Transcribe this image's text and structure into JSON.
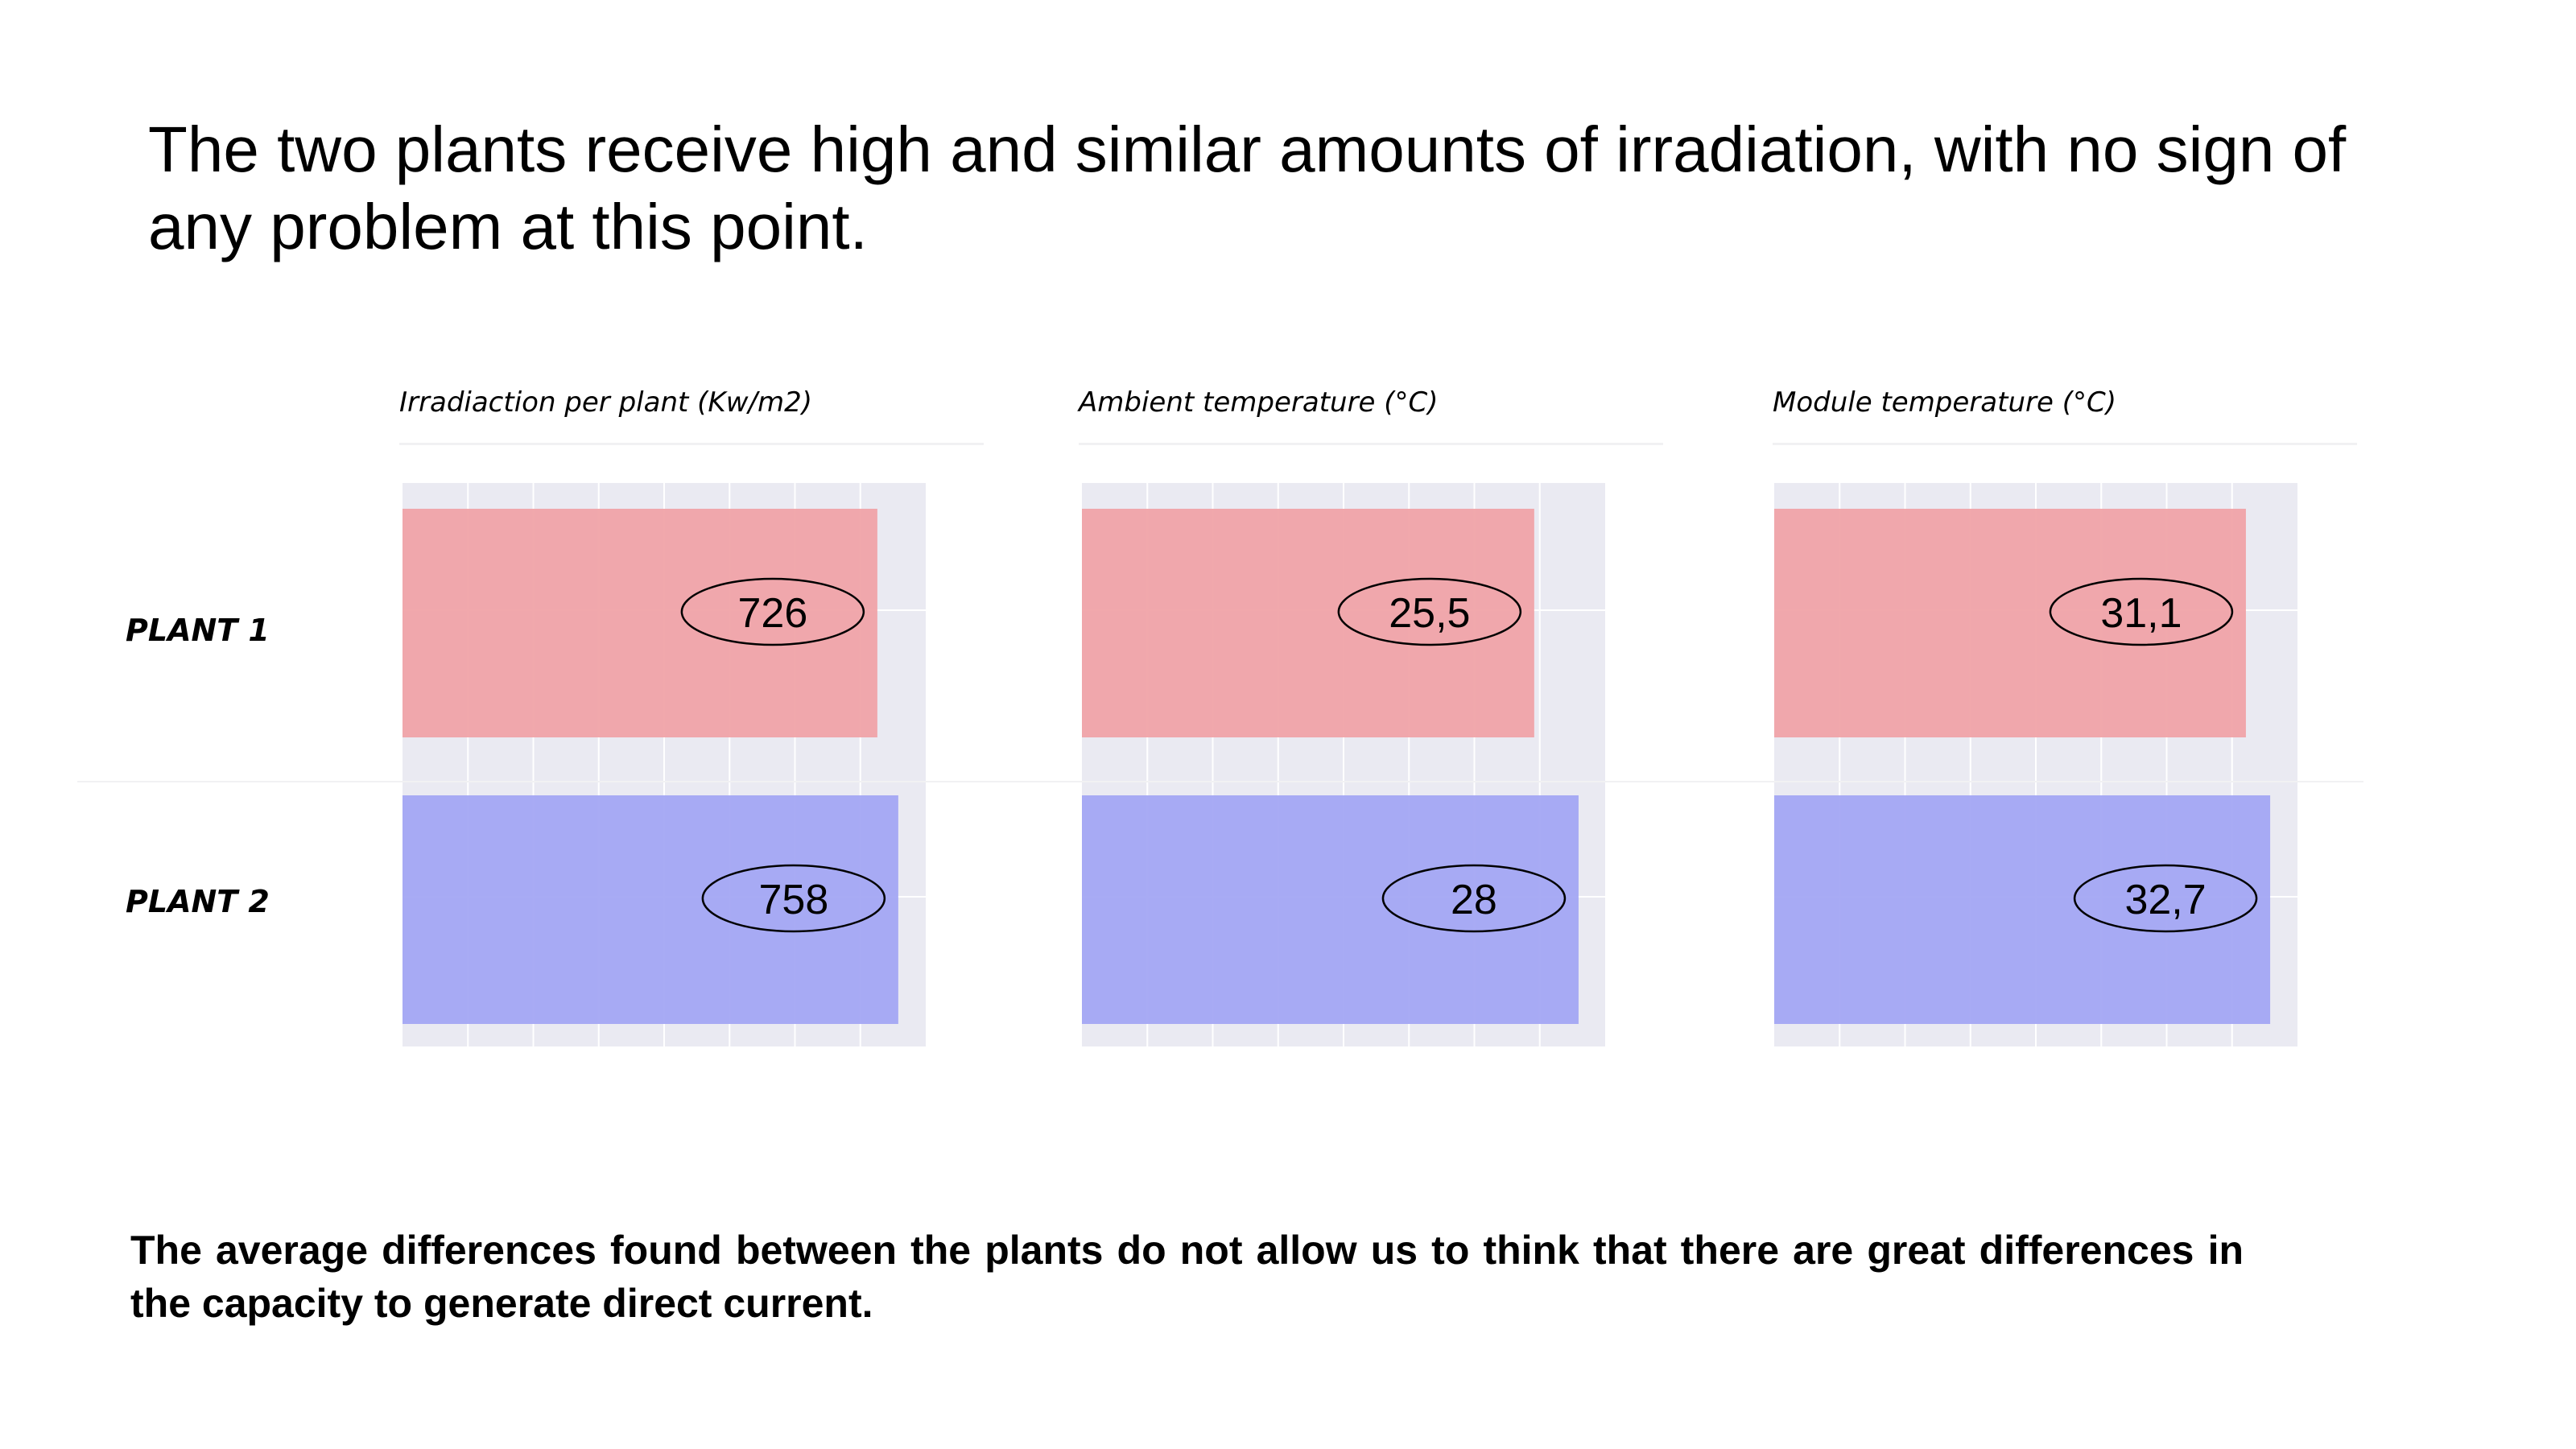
{
  "headline": "The two plants receive high and similar amounts of irradiation, with no sign of any problem at this point.",
  "footer": "The average differences found between the plants do not allow us to think that there are great differences in the capacity to generate direct current.",
  "rows": {
    "plant1": "PLANT 1",
    "plant2": "PLANT 2"
  },
  "colors": {
    "plant1": "#f0a3a8",
    "plant2": "#a3a6f3",
    "panel_background": "#eaeaf2",
    "grid": "#ffffff"
  },
  "chart_data": [
    {
      "type": "bar",
      "orientation": "horizontal",
      "title": "Irradiaction per plant (Kw/m2)",
      "categories": [
        "PLANT 1",
        "PLANT 2"
      ],
      "values": [
        726,
        758
      ],
      "value_labels": [
        "726",
        "758"
      ],
      "xlim": [
        0,
        800
      ],
      "grid": true
    },
    {
      "type": "bar",
      "orientation": "horizontal",
      "title": "Ambient temperature  (°C)",
      "categories": [
        "PLANT 1",
        "PLANT 2"
      ],
      "values": [
        25.5,
        28
      ],
      "value_labels": [
        "25,5",
        "28"
      ],
      "xlim": [
        0,
        29.5
      ],
      "grid": true
    },
    {
      "type": "bar",
      "orientation": "horizontal",
      "title": "Module temperature  (°C)",
      "categories": [
        "PLANT 1",
        "PLANT 2"
      ],
      "values": [
        31.1,
        32.7
      ],
      "value_labels": [
        "31,1",
        "32,7"
      ],
      "xlim": [
        0,
        34.5
      ],
      "grid": true
    }
  ]
}
